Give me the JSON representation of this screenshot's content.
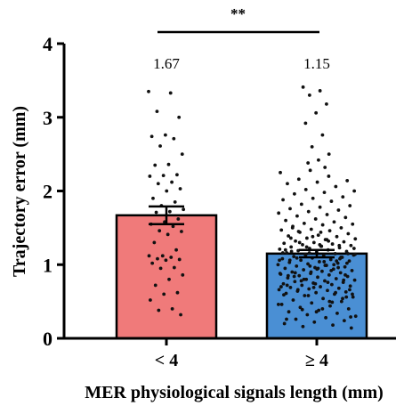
{
  "chart_data": {
    "type": "bar",
    "xlabel": "MER physiological signals length (mm)",
    "ylabel": "Trajectory error (mm)",
    "ylim": [
      0,
      4
    ],
    "yticks": [
      "0",
      "1",
      "2",
      "3",
      "4"
    ],
    "categories": [
      "< 4",
      "≥ 4"
    ],
    "values": [
      1.67,
      1.15
    ],
    "value_labels": [
      "1.67",
      "1.15"
    ],
    "error_bars": [
      {
        "low": 1.55,
        "high": 1.79
      },
      {
        "low": 1.1,
        "high": 1.2
      }
    ],
    "bar_colors": [
      "#f07a7a",
      "#4a8fd4"
    ],
    "significance": {
      "label": "**",
      "between": [
        "< 4",
        "≥ 4"
      ]
    },
    "points": [
      [
        3.35,
        3.33,
        3.08,
        3.0,
        2.76,
        2.74,
        2.71,
        2.61,
        2.5,
        2.36,
        2.35,
        2.22,
        2.21,
        2.2,
        2.12,
        2.1,
        2.03,
        2.0,
        1.9,
        1.85,
        1.8,
        1.75,
        1.72,
        1.71,
        1.62,
        1.58,
        1.55,
        1.52,
        1.46,
        1.45,
        1.41,
        1.3,
        1.2,
        1.12,
        1.12,
        1.1,
        1.08,
        1.07,
        1.06,
        1.02,
        0.96,
        0.95,
        0.86,
        0.8,
        0.72,
        0.62,
        0.6,
        0.52,
        0.4,
        0.38,
        0.32
      ],
      [
        3.41,
        3.36,
        3.3,
        3.18,
        3.06,
        2.92,
        2.76,
        2.6,
        2.5,
        2.42,
        2.38,
        2.32,
        2.28,
        2.25,
        2.2,
        2.16,
        2.14,
        2.12,
        2.1,
        2.06,
        2.02,
        2.0,
        1.98,
        1.96,
        1.92,
        1.9,
        1.88,
        1.86,
        1.82,
        1.8,
        1.78,
        1.76,
        1.74,
        1.72,
        1.7,
        1.68,
        1.66,
        1.64,
        1.62,
        1.6,
        1.58,
        1.56,
        1.55,
        1.54,
        1.52,
        1.5,
        1.48,
        1.47,
        1.46,
        1.44,
        1.42,
        1.4,
        1.39,
        1.38,
        1.36,
        1.35,
        1.34,
        1.32,
        1.31,
        1.3,
        1.29,
        1.28,
        1.27,
        1.26,
        1.25,
        1.24,
        1.23,
        1.22,
        1.21,
        1.2,
        1.19,
        1.18,
        1.17,
        1.16,
        1.15,
        1.14,
        1.13,
        1.12,
        1.11,
        1.1,
        1.09,
        1.08,
        1.07,
        1.06,
        1.05,
        1.04,
        1.03,
        1.02,
        1.01,
        1.0,
        0.99,
        0.98,
        0.97,
        0.96,
        0.95,
        0.94,
        0.93,
        0.92,
        0.91,
        0.9,
        0.89,
        0.88,
        0.87,
        0.86,
        0.85,
        0.84,
        0.83,
        0.82,
        0.81,
        0.8,
        0.79,
        0.78,
        0.77,
        0.76,
        0.75,
        0.74,
        0.73,
        0.72,
        0.71,
        0.7,
        0.69,
        0.68,
        0.67,
        0.66,
        0.65,
        0.64,
        0.63,
        0.62,
        0.61,
        0.6,
        0.58,
        0.56,
        0.54,
        0.52,
        0.5,
        0.48,
        0.46,
        0.44,
        0.42,
        0.4,
        0.38,
        0.36,
        0.34,
        0.32,
        0.3,
        0.28,
        0.26,
        0.24,
        0.22,
        0.2,
        0.18,
        0.16,
        0.14,
        1.25,
        1.18,
        1.08,
        0.98,
        0.88,
        1.32,
        1.45,
        1.02,
        0.94,
        0.72,
        0.62,
        1.13,
        1.22,
        1.04,
        0.84,
        0.54,
        1.38,
        1.16,
        0.92,
        0.78,
        0.66,
        1.27,
        1.06,
        0.96,
        0.58,
        0.46,
        1.34,
        1.09,
        0.86,
        0.74,
        1.2,
        1.0,
        0.8,
        0.6,
        0.4,
        1.5,
        1.1,
        0.9,
        0.7,
        0.5,
        1.3,
        1.15,
        0.95,
        0.85,
        1.05,
        1.24,
        1.14,
        0.99,
        0.89,
        0.79,
        0.69,
        0.59,
        0.49,
        0.39,
        0.29,
        1.44,
        1.36,
        1.26,
        1.16,
        1.06,
        0.76,
        0.66,
        0.56,
        0.36,
        0.26
      ]
    ]
  }
}
